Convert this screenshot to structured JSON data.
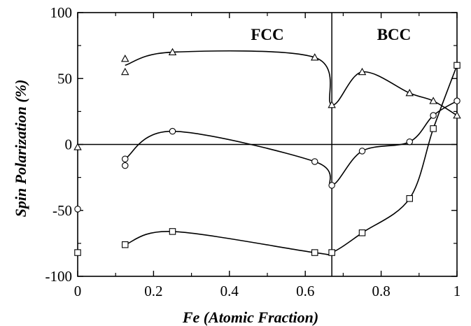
{
  "chart_data": {
    "type": "line",
    "title": "",
    "xlabel": "Fe (Atomic Fraction)",
    "ylabel": "Spin Polarization (%)",
    "xlim": [
      0,
      1
    ],
    "ylim": [
      -100,
      100
    ],
    "x_ticks": [
      "0",
      "0.2",
      "0.4",
      "0.6",
      "0.8",
      "1"
    ],
    "y_ticks": [
      "100",
      "50",
      "0",
      "-50",
      "-100"
    ],
    "grid": false,
    "legend": "none",
    "annotations": [
      "FCC",
      "BCC"
    ],
    "phase_boundary_x": 0.67,
    "series": [
      {
        "marker": "triangle",
        "points": [
          [
            0,
            -2
          ],
          [
            0.125,
            65
          ],
          [
            0.125,
            55
          ],
          [
            0.25,
            70
          ],
          [
            0.625,
            66
          ],
          [
            0.67,
            30
          ],
          [
            0.75,
            55
          ],
          [
            0.875,
            39
          ],
          [
            0.9375,
            33
          ],
          [
            1,
            22
          ]
        ],
        "curve": [
          [
            0.125,
            60
          ],
          [
            0.25,
            70
          ],
          [
            0.625,
            66
          ],
          [
            0.67,
            30
          ],
          [
            0.75,
            55
          ],
          [
            0.875,
            39
          ],
          [
            0.9375,
            33
          ],
          [
            1,
            22
          ]
        ]
      },
      {
        "marker": "circle",
        "points": [
          [
            0,
            -49
          ],
          [
            0.125,
            -11
          ],
          [
            0.125,
            -16
          ],
          [
            0.25,
            10
          ],
          [
            0.625,
            -13
          ],
          [
            0.67,
            -31
          ],
          [
            0.75,
            -5
          ],
          [
            0.875,
            2
          ],
          [
            0.9375,
            22
          ],
          [
            1,
            33
          ]
        ],
        "curve": [
          [
            0.125,
            -11
          ],
          [
            0.25,
            10
          ],
          [
            0.625,
            -13
          ],
          [
            0.67,
            -31
          ],
          [
            0.75,
            -5
          ],
          [
            0.875,
            2
          ],
          [
            0.9375,
            22
          ],
          [
            1,
            33
          ]
        ]
      },
      {
        "marker": "square",
        "points": [
          [
            0,
            -82
          ],
          [
            0.125,
            -76
          ],
          [
            0.25,
            -66
          ],
          [
            0.625,
            -82
          ],
          [
            0.67,
            -82
          ],
          [
            0.75,
            -67
          ],
          [
            0.875,
            -41
          ],
          [
            0.9375,
            12
          ],
          [
            1,
            60
          ]
        ],
        "curve": [
          [
            0.125,
            -76
          ],
          [
            0.25,
            -66
          ],
          [
            0.625,
            -82
          ],
          [
            0.67,
            -82
          ],
          [
            0.75,
            -67
          ],
          [
            0.875,
            -41
          ],
          [
            0.9375,
            12
          ],
          [
            1,
            60
          ]
        ]
      }
    ]
  }
}
